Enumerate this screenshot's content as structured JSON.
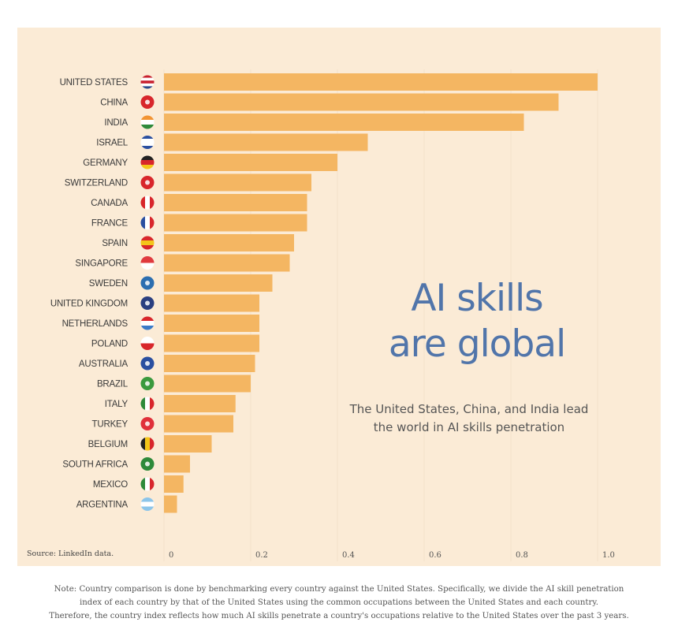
{
  "chart_data": {
    "type": "bar",
    "orientation": "horizontal",
    "title": "AI skills are global",
    "subtitle": "The United States, China, and India lead the world in AI skills penetration",
    "categories": [
      "UNITED STATES",
      "CHINA",
      "INDIA",
      "ISRAEL",
      "GERMANY",
      "SWITZERLAND",
      "CANADA",
      "FRANCE",
      "SPAIN",
      "SINGAPORE",
      "SWEDEN",
      "UNITED KINGDOM",
      "NETHERLANDS",
      "POLAND",
      "AUSTRALIA",
      "BRAZIL",
      "ITALY",
      "TURKEY",
      "BELGIUM",
      "SOUTH AFRICA",
      "MEXICO",
      "ARGENTINA"
    ],
    "values": [
      1.0,
      0.91,
      0.83,
      0.47,
      0.4,
      0.34,
      0.33,
      0.33,
      0.3,
      0.29,
      0.25,
      0.22,
      0.22,
      0.22,
      0.21,
      0.2,
      0.165,
      0.16,
      0.11,
      0.06,
      0.045,
      0.03
    ],
    "xlim": [
      0,
      1.0
    ],
    "xticks": [
      "0",
      "0.2",
      "0.4",
      "0.6",
      "0.8",
      "1.0"
    ],
    "grid": true,
    "bar_color": "#f4b662",
    "source": "Source: LinkedIn data."
  },
  "flags": [
    [
      "h",
      "#c8202f",
      "#ffffff",
      "#c8202f",
      "#ffffff",
      "#2c4a8a"
    ],
    [
      "s",
      "#d8262b"
    ],
    [
      "h",
      "#f29433",
      "#ffffff",
      "#2e8a3a"
    ],
    [
      "h",
      "#2a4fa0",
      "#ffffff",
      "#ffffff",
      "#2a4fa0"
    ],
    [
      "h",
      "#222222",
      "#d8262b",
      "#f3c51a"
    ],
    [
      "s",
      "#d8262b"
    ],
    [
      "v",
      "#d8262b",
      "#ffffff",
      "#d8262b"
    ],
    [
      "v",
      "#2a4fa0",
      "#ffffff",
      "#d8262b"
    ],
    [
      "h",
      "#d8262b",
      "#f3c51a",
      "#d8262b"
    ],
    [
      "h",
      "#e03a3e",
      "#ffffff"
    ],
    [
      "s",
      "#2c6eb0"
    ],
    [
      "s",
      "#2a3f80"
    ],
    [
      "h",
      "#d8262b",
      "#ffffff",
      "#3a7bc8"
    ],
    [
      "h",
      "#ffffff",
      "#d8262b"
    ],
    [
      "s",
      "#2a4fa0"
    ],
    [
      "s",
      "#3a9a3e"
    ],
    [
      "v",
      "#2e8a3a",
      "#ffffff",
      "#d8262b"
    ],
    [
      "s",
      "#e0303a"
    ],
    [
      "v",
      "#222222",
      "#f3c51a",
      "#d8262b"
    ],
    [
      "s",
      "#2e8a3a"
    ],
    [
      "v",
      "#2e8a3a",
      "#ffffff",
      "#d8262b"
    ],
    [
      "h",
      "#8cc5ea",
      "#ffffff",
      "#8cc5ea"
    ]
  ],
  "note": {
    "lines": [
      "Note: Country comparison is done by benchmarking every country against the United States. Specifically, we divide the AI skill penetration",
      "index of each country by that of the United States using the common occupations between the United States and each country.",
      "Therefore, the country index reflects how much AI skills penetrate a country's occupations relative to the United States over the past 3 years."
    ]
  },
  "title_lines": [
    "AI skills",
    "are global"
  ]
}
